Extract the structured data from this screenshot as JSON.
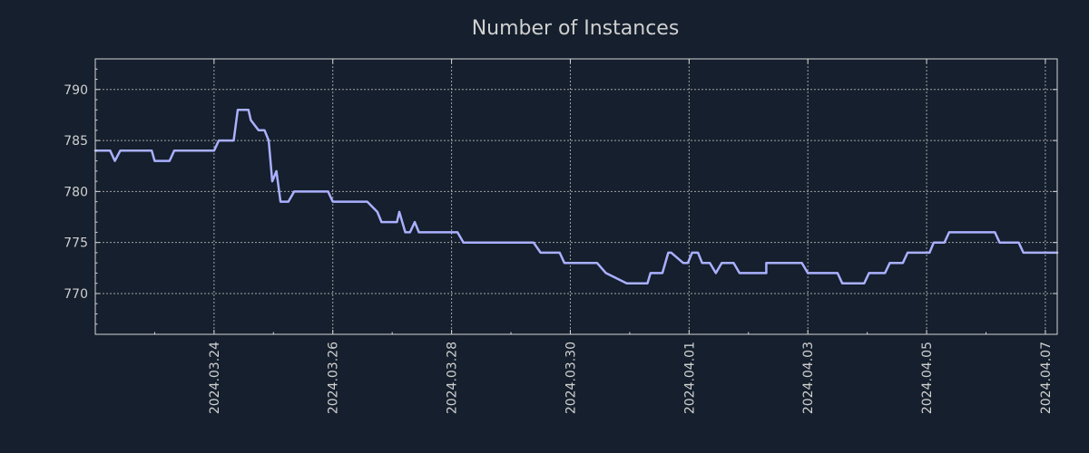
{
  "colors": {
    "background": "#151f2d",
    "line": "#aab0ff",
    "text": "#d0d0d0"
  },
  "chart_data": {
    "type": "line",
    "title": "Number of Instances",
    "xlabel": "",
    "ylabel": "",
    "grid": true,
    "ylim": [
      766,
      793
    ],
    "xlim": [
      -2.0,
      14.2
    ],
    "y_ticks": [
      770,
      775,
      780,
      785,
      790
    ],
    "x_ticks": [
      {
        "value": 0,
        "label": "2024.03.24"
      },
      {
        "value": 2,
        "label": "2024.03.26"
      },
      {
        "value": 4,
        "label": "2024.03.28"
      },
      {
        "value": 6,
        "label": "2024.03.30"
      },
      {
        "value": 8,
        "label": "2024.04.01"
      },
      {
        "value": 10,
        "label": "2024.04.03"
      },
      {
        "value": 12,
        "label": "2024.04.05"
      },
      {
        "value": 14,
        "label": "2024.04.07"
      }
    ],
    "x_unit_note": "x values are days relative to 2024.03.24",
    "series": [
      {
        "name": "instances",
        "x": [
          -2.0,
          -1.75,
          -1.67,
          -1.58,
          -1.05,
          -1.0,
          -0.75,
          -0.67,
          -0.58,
          0.0,
          0.08,
          0.33,
          0.4,
          0.58,
          0.62,
          0.75,
          0.85,
          0.92,
          0.98,
          1.05,
          1.12,
          1.25,
          1.35,
          1.42,
          1.92,
          2.0,
          2.58,
          2.75,
          2.82,
          3.0,
          3.08,
          3.12,
          3.22,
          3.3,
          3.38,
          3.45,
          4.1,
          4.2,
          5.3,
          5.38,
          5.5,
          5.82,
          5.9,
          6.45,
          6.6,
          6.95,
          7.05,
          7.3,
          7.35,
          7.45,
          7.5,
          7.55,
          7.65,
          7.7,
          7.9,
          7.98,
          8.05,
          8.15,
          8.22,
          8.35,
          8.45,
          8.55,
          8.75,
          8.85,
          9.22,
          9.3,
          9.3,
          9.9,
          10.0,
          10.5,
          10.58,
          10.95,
          11.03,
          11.3,
          11.38,
          11.6,
          11.68,
          12.05,
          12.12,
          12.3,
          12.38,
          13.15,
          13.23,
          13.55,
          13.63,
          14.2
        ],
        "values": [
          784,
          784,
          783,
          784,
          784,
          783,
          783,
          784,
          784,
          784,
          785,
          785,
          788,
          788,
          787,
          786,
          786,
          785,
          781,
          782,
          779,
          779,
          780,
          780,
          780,
          779,
          779,
          778,
          777,
          777,
          777,
          778,
          776,
          776,
          777,
          776,
          776,
          775,
          775,
          775,
          774,
          774,
          773,
          773,
          772,
          771,
          771,
          771,
          772,
          772,
          772,
          772,
          774,
          774,
          773,
          773,
          774,
          774,
          773,
          773,
          772,
          773,
          773,
          772,
          772,
          772,
          773,
          773,
          772,
          772,
          771,
          771,
          772,
          772,
          773,
          773,
          774,
          774,
          775,
          775,
          776,
          776,
          775,
          775,
          774,
          774
        ]
      }
    ]
  }
}
